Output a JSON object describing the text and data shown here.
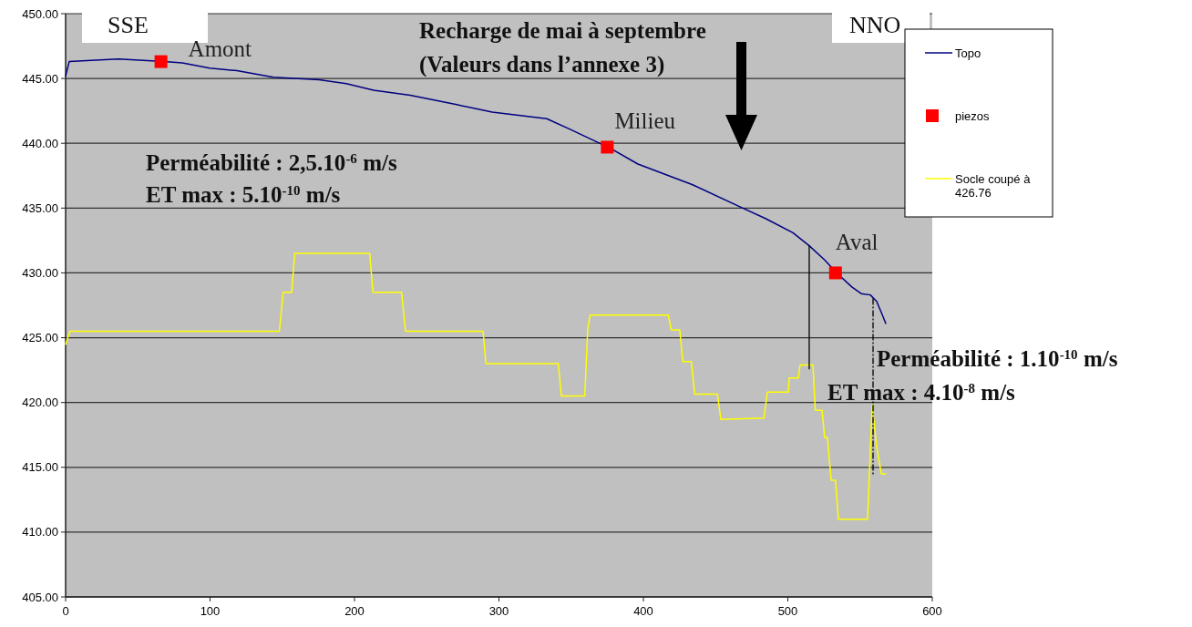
{
  "chart_data": {
    "type": "line",
    "xlim": [
      0,
      600
    ],
    "xticks": [
      0,
      100,
      200,
      300,
      400,
      500,
      600
    ],
    "ylim": [
      405,
      450
    ],
    "yticks": [
      {
        "value": 405,
        "label": "405.00"
      },
      {
        "value": 410,
        "label": "410.00"
      },
      {
        "value": 415,
        "label": "415.00"
      },
      {
        "value": 420,
        "label": "420.00"
      },
      {
        "value": 425,
        "label": "425.00"
      },
      {
        "value": 430,
        "label": "430.00"
      },
      {
        "value": 435,
        "label": "435.00"
      },
      {
        "value": 440,
        "label": "440.00"
      },
      {
        "value": 445,
        "label": "445.00"
      },
      {
        "value": 450,
        "label": "450.00"
      }
    ],
    "grid": "y",
    "legend": "right",
    "series": [
      {
        "name": "Topo",
        "color": "#000080",
        "x": [
          0,
          2.5,
          17.7,
          36.6,
          68.1,
          80.8,
          99.7,
          118.6,
          143.8,
          175.4,
          194.3,
          213.2,
          238.5,
          270,
          295.3,
          333.1,
          348.9,
          377.3,
          396.2,
          434.1,
          468.8,
          484.5,
          503.5,
          514.8,
          525.5,
          533.8,
          544.5,
          550.8,
          557.1,
          561.5,
          565.3,
          567.8
        ],
        "values": [
          445.2,
          446.3,
          446.4,
          446.5,
          446.3,
          446.2,
          445.8,
          445.6,
          445.1,
          444.9,
          444.6,
          444.1,
          443.7,
          443.0,
          442.4,
          441.9,
          441.1,
          439.6,
          438.4,
          436.8,
          435.0,
          434.2,
          433.1,
          432.1,
          431.0,
          430.0,
          428.9,
          428.4,
          428.3,
          427.8,
          426.8,
          426.1
        ]
      },
      {
        "name": "piezos",
        "type": "scatter",
        "marker": "square",
        "color": "#ff0000",
        "x": [
          66,
          375,
          533
        ],
        "values": [
          446.3,
          439.7,
          430.0
        ]
      },
      {
        "name": "Socle coupé à 426.76",
        "color": "#ffff00",
        "x": [
          0,
          3,
          148,
          150.6,
          156.5,
          158.6,
          210.5,
          212.8,
          232.6,
          235.3,
          289,
          291,
          341.1,
          343.2,
          359.4,
          361.5,
          363.2,
          417.2,
          419.3,
          425.2,
          427.3,
          433.2,
          435.5,
          451.3,
          453.6,
          483.5,
          485.8,
          500.3,
          501,
          507.3,
          508.5,
          517.4,
          519,
          523.7,
          525.5,
          527.4,
          530,
          533,
          535,
          555.2,
          558.4,
          561.5,
          564.7,
          567.8
        ],
        "values": [
          424.5,
          425.5,
          425.5,
          428.5,
          428.5,
          431.5,
          431.5,
          428.5,
          428.5,
          425.5,
          425.5,
          423.0,
          423.0,
          420.5,
          420.5,
          425.7,
          426.75,
          426.75,
          425.6,
          425.6,
          423.15,
          423.15,
          420.65,
          420.65,
          418.7,
          418.8,
          420.8,
          420.8,
          421.9,
          421.9,
          422.9,
          422.9,
          419.4,
          419.4,
          417.3,
          417.3,
          414.0,
          414.0,
          411.0,
          411.0,
          419.8,
          416.6,
          414.5,
          414.5
        ]
      },
      {
        "color": "#000000",
        "line_style": "solid",
        "x": [
          514.8,
          514.8
        ],
        "values": [
          432.1,
          422.6
        ]
      },
      {
        "color": "#000000",
        "line_style": "dashed",
        "x": [
          559,
          559
        ],
        "values": [
          428.0,
          414.5
        ]
      }
    ],
    "annotations": [
      "SSE",
      "NNO",
      {
        "text": "Amont",
        "x": 66,
        "y": 446.3
      },
      {
        "text": "Milieu",
        "x": 375,
        "y": 439.7
      },
      {
        "text": "Aval",
        "x": 533,
        "y": 430.0
      },
      "Recharge de mai à septembre",
      "(Valeurs dans l’annexe 3)",
      "Perméabilité : 2,5.10$^{-6}$ m/s",
      "ET max : 5.10$^{-10}$ m/s",
      "Perméabilité : 1.10$^{-10}$ m/s",
      "ET max : 4.10$^{-8}$ m/s"
    ]
  }
}
